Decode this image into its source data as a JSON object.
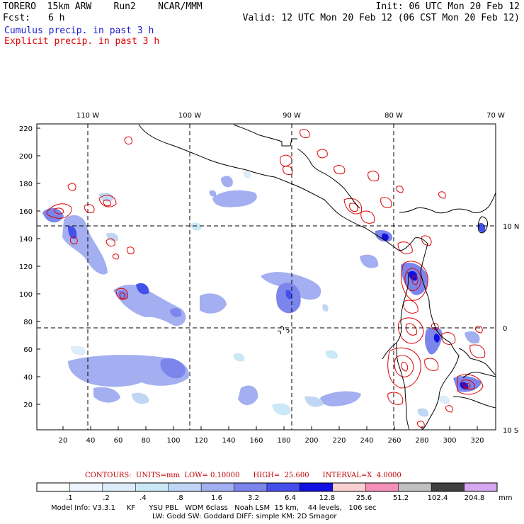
{
  "header": {
    "model_line": "TORERO  15km ARW    Run2    NCAR/MMM",
    "init": "Init: 06 UTC Mon 20 Feb 12",
    "fcst_label": "Fcst:",
    "fcst_value": "6 h",
    "valid": "Valid: 12 UTC Mon 20 Feb 12 (06 CST Mon 20 Feb 12)",
    "cumulus": "Cumulus precip. in past 3 h",
    "explicit": "Explicit precip. in past 3 h",
    "cumulus_color": "#1a1acc",
    "explicit_color": "#dd0000"
  },
  "map": {
    "lon_labels": [
      "110 W",
      "100 W",
      "90 W",
      "80 W",
      "70 W"
    ],
    "lat_labels": [
      "10 N",
      "0",
      "10 S"
    ],
    "y_ticks": [
      "220",
      "200",
      "180",
      "160",
      "140",
      "120",
      "100",
      "80",
      "60",
      "40",
      "20"
    ],
    "x_ticks": [
      "20",
      "40",
      "60",
      "80",
      "100",
      "120",
      "140",
      "160",
      "180",
      "200",
      "220",
      "240",
      "260",
      "280",
      "300",
      "320"
    ]
  },
  "footer": {
    "contours": "CONTOURS:  UNITS=mm  LOW= 0.10000      HIGH=  25.600      INTERVAL=X  4.0000",
    "legend_labels": [
      ".1",
      ".2",
      ".4",
      ".8",
      "1.6",
      "3.2",
      "6.4",
      "12.8",
      "25.6",
      "51.2",
      "102.4",
      "204.8"
    ],
    "legend_unit": "mm",
    "legend_colors": [
      "#ffffff",
      "#eef4fd",
      "#dcecf8",
      "#cbe8f6",
      "#bfd6f4",
      "#a3aff0",
      "#7b85ec",
      "#4450ea",
      "#1010e0",
      "#f8d0d0",
      "#f590b8",
      "#c0c0c0",
      "#404040",
      "#d7a7ef"
    ],
    "model_info_1": "Model Info: V3.3.1     KF      YSU PBL   WDM 6class   Noah LSM  15 km,    44 levels,   106 sec",
    "model_info_2": "LW: Godd SW: Goddard DIFF: simple KM: 2D Smagor"
  }
}
